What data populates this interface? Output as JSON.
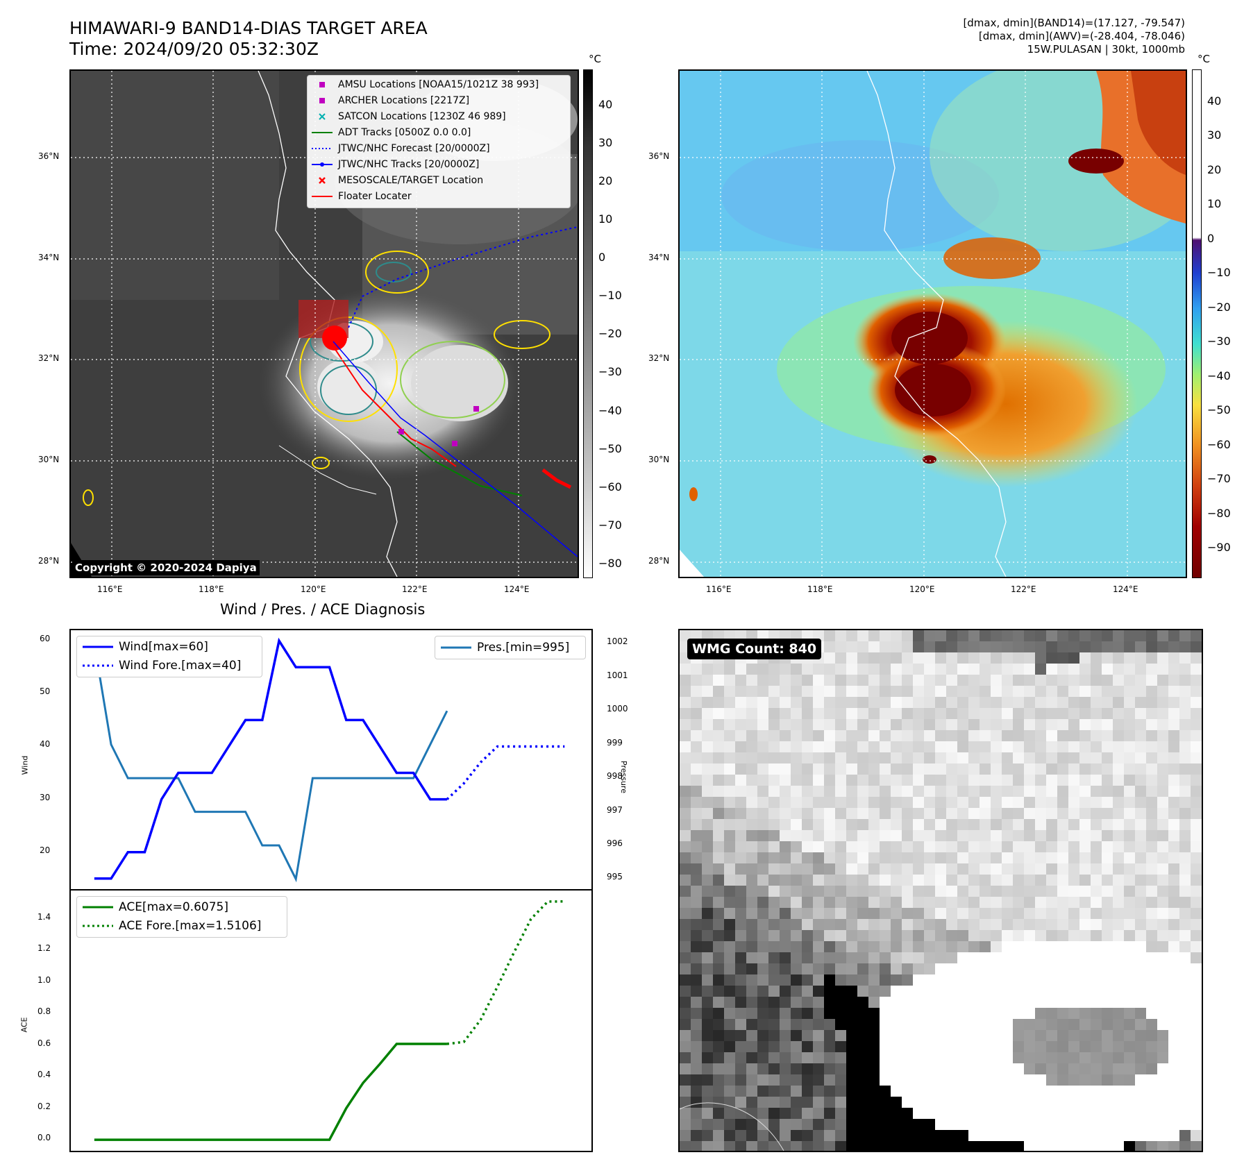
{
  "header": {
    "title_line1": "HIMAWARI-9 BAND14-DIAS TARGET AREA",
    "title_line2": "Time: 2024/09/20 05:32:30Z",
    "right_line1": "[dmax, dmin](BAND14)=(17.127, -79.547)",
    "right_line2": "[dmax, dmin](AWV)=(-28.404, -78.046)",
    "right_line3": "15W.PULASAN | 30kt, 1000mb"
  },
  "map": {
    "lon_labels": [
      "116°E",
      "118°E",
      "120°E",
      "122°E",
      "124°E"
    ],
    "lat_labels": [
      "36°N",
      "34°N",
      "32°N",
      "30°N",
      "28°N"
    ],
    "unit": "°C",
    "copyright": "Copyright © 2020-2024 Dapiya",
    "legend": [
      {
        "label": "AMSU Locations [NOAA15/1021Z 38 993]",
        "color": "#c000c0",
        "marker": "square"
      },
      {
        "label": "ARCHER Locations [2217Z]",
        "color": "#c000c0",
        "marker": "square"
      },
      {
        "label": "SATCON Locations [1230Z 46 989]",
        "color": "#00b0b0",
        "marker": "x"
      },
      {
        "label": "ADT Tracks [0500Z 0.0 0.0]",
        "color": "#008000",
        "marker": "line"
      },
      {
        "label": "JTWC/NHC Forecast [20/0000Z]",
        "color": "#0000ff",
        "marker": "dotted"
      },
      {
        "label": "JTWC/NHC Tracks [20/0000Z]",
        "color": "#0000ff",
        "marker": "line-dot"
      },
      {
        "label": "MESOSCALE/TARGET Location",
        "color": "#ff0000",
        "marker": "x"
      },
      {
        "label": "Floater Locater",
        "color": "#ff0000",
        "marker": "line"
      }
    ]
  },
  "colorbars": {
    "left_ticks": [
      "40",
      "30",
      "20",
      "10",
      "0",
      "−10",
      "−20",
      "−30",
      "−40",
      "−50",
      "−60",
      "−70",
      "−80"
    ],
    "right_ticks": [
      "40",
      "30",
      "20",
      "10",
      "0",
      "−10",
      "−20",
      "−30",
      "−40",
      "−50",
      "−60",
      "−70",
      "−80",
      "−90"
    ]
  },
  "diagnosis": {
    "title": "Wind / Pres. / ACE Diagnosis",
    "wind_ylabel": "Wind",
    "pres_ylabel": "Pressure",
    "ace_ylabel": "ACE",
    "legend_wind": "Wind[max=60]",
    "legend_wind_fore": "Wind Fore.[max=40]",
    "legend_pres": "Pres.[min=995]",
    "legend_ace": "ACE[max=0.6075]",
    "legend_ace_fore": "ACE Fore.[max=1.5106]"
  },
  "wmg": {
    "label": "WMG Count: 840"
  },
  "chart_data": [
    {
      "type": "line",
      "title": "Wind / Pres. / ACE Diagnosis",
      "ylabel": "Wind",
      "ylim": [
        13,
        62
      ],
      "yticks": [
        20,
        30,
        40,
        50,
        60
      ],
      "x": [
        0,
        1,
        2,
        3,
        4,
        5,
        6,
        7,
        8,
        9,
        10,
        11,
        12,
        13,
        14,
        15,
        16,
        17,
        18,
        19,
        20,
        21
      ],
      "series": [
        {
          "name": "Wind[max=60]",
          "color": "#0000ff",
          "style": "solid",
          "x": [
            0,
            1,
            2,
            3,
            4,
            5,
            6,
            7,
            8,
            9,
            10,
            11,
            12,
            13,
            14,
            15,
            16,
            17,
            18,
            19,
            20,
            21
          ],
          "values": [
            15,
            15,
            20,
            20,
            30,
            35,
            35,
            35,
            40,
            45,
            45,
            60,
            55,
            55,
            55,
            45,
            45,
            40,
            35,
            35,
            30,
            30
          ]
        },
        {
          "name": "Wind Fore.[max=40]",
          "color": "#0000ff",
          "style": "dotted",
          "x": [
            21,
            22,
            23,
            24,
            25,
            26,
            27,
            28
          ],
          "values": [
            30,
            33,
            37,
            40,
            40,
            40,
            40,
            40
          ]
        }
      ]
    },
    {
      "type": "line",
      "ylabel": "Pressure",
      "ylim": [
        994.7,
        1002.4
      ],
      "yticks": [
        995,
        996,
        997,
        998,
        999,
        1000,
        1001,
        1002
      ],
      "series": [
        {
          "name": "Pres.[min=995]",
          "color": "#1f77b4",
          "style": "solid",
          "x": [
            0,
            1,
            2,
            3,
            4,
            5,
            6,
            7,
            8,
            9,
            10,
            11,
            12,
            13,
            14,
            15,
            16,
            17,
            18,
            19,
            20,
            21
          ],
          "values": [
            1002,
            999,
            998,
            998,
            998,
            998,
            997,
            997,
            997,
            997,
            996,
            996,
            995,
            998,
            998,
            998,
            998,
            998,
            998,
            998,
            999,
            1000
          ]
        }
      ]
    },
    {
      "type": "line",
      "ylabel": "ACE",
      "ylim": [
        -0.07,
        1.58
      ],
      "yticks": [
        0.0,
        0.2,
        0.4,
        0.6,
        0.8,
        1.0,
        1.2,
        1.4
      ],
      "series": [
        {
          "name": "ACE[max=0.6075]",
          "color": "#008000",
          "style": "solid",
          "x": [
            0,
            1,
            2,
            3,
            4,
            5,
            6,
            7,
            8,
            9,
            10,
            11,
            12,
            13,
            14,
            15,
            16,
            17,
            18,
            19,
            20,
            21
          ],
          "values": [
            0,
            0,
            0,
            0,
            0,
            0,
            0,
            0,
            0,
            0,
            0,
            0,
            0,
            0,
            0,
            0.2,
            0.36,
            0.48,
            0.6075,
            0.6075,
            0.6075,
            0.6075
          ]
        },
        {
          "name": "ACE Fore.[max=1.5106]",
          "color": "#008000",
          "style": "dotted",
          "x": [
            21,
            22,
            23,
            24,
            25,
            26,
            27,
            28
          ],
          "values": [
            0.6075,
            0.62,
            0.76,
            0.97,
            1.19,
            1.4,
            1.51,
            1.5106
          ]
        }
      ]
    }
  ]
}
